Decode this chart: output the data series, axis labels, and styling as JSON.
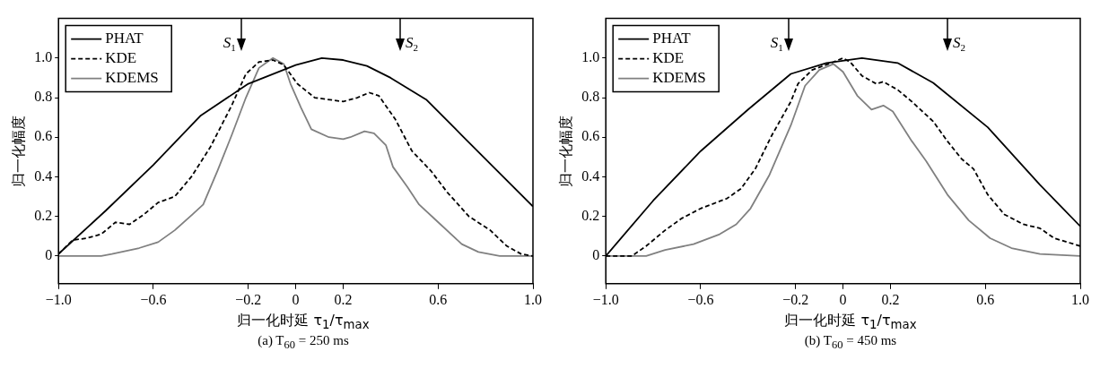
{
  "chart_data": [
    {
      "type": "line",
      "title": "(a) T$_{60}$ = 250 ms",
      "xlabel": "归一化时延 τ$_{1}$/τ$_{max}$",
      "ylabel": "归一化幅度",
      "xlim": [
        -1,
        1
      ],
      "ylim": [
        -0.14,
        1.2
      ],
      "xticks": [
        {
          "value": -1,
          "label": "−1.0"
        },
        {
          "value": -0.6,
          "label": "−0.6"
        },
        {
          "value": -0.2,
          "label": "−0.2"
        },
        0,
        0.2,
        0.6,
        {
          "value": 1,
          "label": "1.0"
        }
      ],
      "yticks": [
        0,
        0.2,
        0.4,
        0.6,
        0.8,
        {
          "value": 1,
          "label": "1.0"
        }
      ],
      "grid": false,
      "legend": "top left",
      "marker": "none",
      "ref_lines": [
        {
          "axis": "x",
          "value": -0.23,
          "label": "S$_{1}$"
        },
        {
          "axis": "x",
          "value": 0.44,
          "label": "S$_{2}$"
        }
      ],
      "series": [
        {
          "name": "PHAT",
          "color": "#000000",
          "line_style": "solid",
          "x": [
            -1,
            -0.8,
            -0.6,
            -0.4,
            -0.2,
            0,
            0.11,
            0.2,
            0.3,
            0.4,
            0.55,
            0.7,
            0.85,
            1
          ],
          "values": [
            0.01,
            0.23,
            0.46,
            0.71,
            0.87,
            0.965,
            1,
            0.99,
            0.96,
            0.9,
            0.79,
            0.61,
            0.43,
            0.25
          ]
        },
        {
          "name": "KDE",
          "color": "#000000",
          "line_style": "dashed",
          "x": [
            -1,
            -0.94,
            -0.88,
            -0.82,
            -0.76,
            -0.7,
            -0.64,
            -0.58,
            -0.51,
            -0.44,
            -0.36,
            -0.27,
            -0.21,
            -0.155,
            -0.096,
            -0.05,
            0.007,
            0.08,
            0.2,
            0.26,
            0.31,
            0.35,
            0.42,
            0.49,
            0.57,
            0.64,
            0.73,
            0.82,
            0.89,
            0.95,
            1
          ],
          "values": [
            0.01,
            0.08,
            0.09,
            0.11,
            0.17,
            0.16,
            0.21,
            0.27,
            0.3,
            0.4,
            0.55,
            0.76,
            0.92,
            0.98,
            0.99,
            0.965,
            0.87,
            0.8,
            0.78,
            0.8,
            0.825,
            0.81,
            0.69,
            0.53,
            0.43,
            0.32,
            0.2,
            0.13,
            0.05,
            0.01,
            0
          ]
        },
        {
          "name": "KDEMS",
          "color": "#808080",
          "line_style": "solid",
          "x": [
            -1,
            -0.82,
            -0.775,
            -0.66,
            -0.58,
            -0.51,
            -0.435,
            -0.39,
            -0.33,
            -0.27,
            -0.21,
            -0.155,
            -0.096,
            -0.05,
            -0.022,
            0.022,
            0.066,
            0.14,
            0.2,
            0.23,
            0.29,
            0.33,
            0.38,
            0.41,
            0.47,
            0.52,
            0.61,
            0.7,
            0.77,
            0.86,
            1
          ],
          "values": [
            0,
            0,
            0.01,
            0.04,
            0.07,
            0.13,
            0.21,
            0.26,
            0.43,
            0.61,
            0.8,
            0.95,
            1,
            0.97,
            0.87,
            0.75,
            0.64,
            0.6,
            0.59,
            0.6,
            0.63,
            0.62,
            0.56,
            0.45,
            0.35,
            0.26,
            0.16,
            0.06,
            0.02,
            0,
            0
          ]
        }
      ]
    },
    {
      "type": "line",
      "title": "(b) T$_{60}$ = 450 ms",
      "xlabel": "归一化时延 τ$_{1}$/τ$_{max}$",
      "ylabel": "归一化幅度",
      "xlim": [
        -1,
        1
      ],
      "ylim": [
        -0.14,
        1.2
      ],
      "xticks": [
        {
          "value": -1,
          "label": "−1.0"
        },
        {
          "value": -0.6,
          "label": "−0.6"
        },
        {
          "value": -0.2,
          "label": "−0.2"
        },
        0,
        0.2,
        0.6,
        {
          "value": 1,
          "label": "1.0"
        }
      ],
      "yticks": [
        0,
        0.2,
        0.4,
        0.6,
        0.8,
        {
          "value": 1,
          "label": "1.0"
        }
      ],
      "grid": false,
      "legend": "top left",
      "marker": "none",
      "ref_lines": [
        {
          "axis": "x",
          "value": -0.23,
          "label": "S$_{1}$"
        },
        {
          "axis": "x",
          "value": 0.44,
          "label": "S$_{2}$"
        }
      ],
      "series": [
        {
          "name": "PHAT",
          "color": "#000000",
          "line_style": "solid",
          "x": [
            -1,
            -0.8,
            -0.6,
            -0.4,
            -0.22,
            -0.07,
            0.08,
            0.23,
            0.38,
            0.61,
            0.83,
            1
          ],
          "values": [
            0,
            0.28,
            0.53,
            0.74,
            0.92,
            0.975,
            1,
            0.975,
            0.875,
            0.65,
            0.36,
            0.15
          ]
        },
        {
          "name": "KDE",
          "color": "#000000",
          "line_style": "dashed",
          "x": [
            -1,
            -0.89,
            -0.83,
            -0.75,
            -0.68,
            -0.6,
            -0.49,
            -0.43,
            -0.37,
            -0.3,
            -0.22,
            -0.19,
            -0.13,
            -0.04,
            0,
            0.03,
            0.08,
            0.14,
            0.17,
            0.23,
            0.29,
            0.38,
            0.44,
            0.5,
            0.55,
            0.61,
            0.68,
            0.76,
            0.83,
            0.89,
            1
          ],
          "values": [
            0,
            0,
            0.05,
            0.13,
            0.19,
            0.24,
            0.29,
            0.34,
            0.44,
            0.61,
            0.78,
            0.87,
            0.94,
            0.98,
            1,
            0.98,
            0.91,
            0.87,
            0.88,
            0.84,
            0.78,
            0.68,
            0.58,
            0.49,
            0.44,
            0.31,
            0.21,
            0.16,
            0.14,
            0.09,
            0.05
          ]
        },
        {
          "name": "KDEMS",
          "color": "#808080",
          "line_style": "solid",
          "x": [
            -1,
            -0.83,
            -0.75,
            -0.63,
            -0.52,
            -0.45,
            -0.39,
            -0.31,
            -0.22,
            -0.16,
            -0.1,
            -0.04,
            0,
            0.06,
            0.12,
            0.17,
            0.21,
            0.29,
            0.35,
            0.44,
            0.53,
            0.62,
            0.71,
            0.83,
            1
          ],
          "values": [
            0,
            0,
            0.03,
            0.06,
            0.11,
            0.16,
            0.24,
            0.41,
            0.66,
            0.86,
            0.94,
            0.97,
            0.93,
            0.81,
            0.74,
            0.76,
            0.73,
            0.58,
            0.48,
            0.31,
            0.18,
            0.09,
            0.04,
            0.01,
            0
          ]
        }
      ]
    }
  ]
}
